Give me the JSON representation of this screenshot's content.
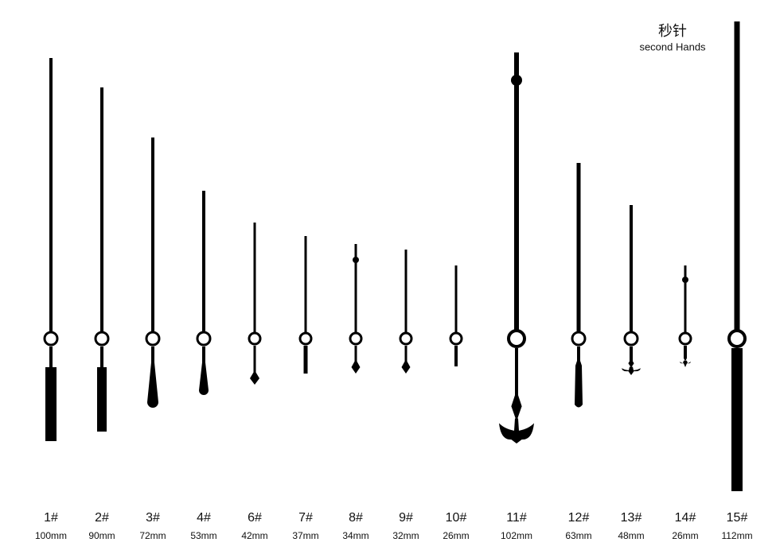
{
  "header": {
    "title": "秒针",
    "subtitle": "second Hands"
  },
  "hands": [
    {
      "label": "1#",
      "length": "100mm"
    },
    {
      "label": "2#",
      "length": "90mm"
    },
    {
      "label": "3#",
      "length": "72mm"
    },
    {
      "label": "4#",
      "length": "53mm"
    },
    {
      "label": "6#",
      "length": "42mm"
    },
    {
      "label": "7#",
      "length": "37mm"
    },
    {
      "label": "8#",
      "length": "34mm"
    },
    {
      "label": "9#",
      "length": "32mm"
    },
    {
      "label": "10#",
      "length": "26mm"
    },
    {
      "label": "11#",
      "length": "102mm"
    },
    {
      "label": "12#",
      "length": "63mm"
    },
    {
      "label": "13#",
      "length": "48mm"
    },
    {
      "label": "14#",
      "length": "26mm"
    },
    {
      "label": "15#",
      "length": "112mm"
    }
  ]
}
